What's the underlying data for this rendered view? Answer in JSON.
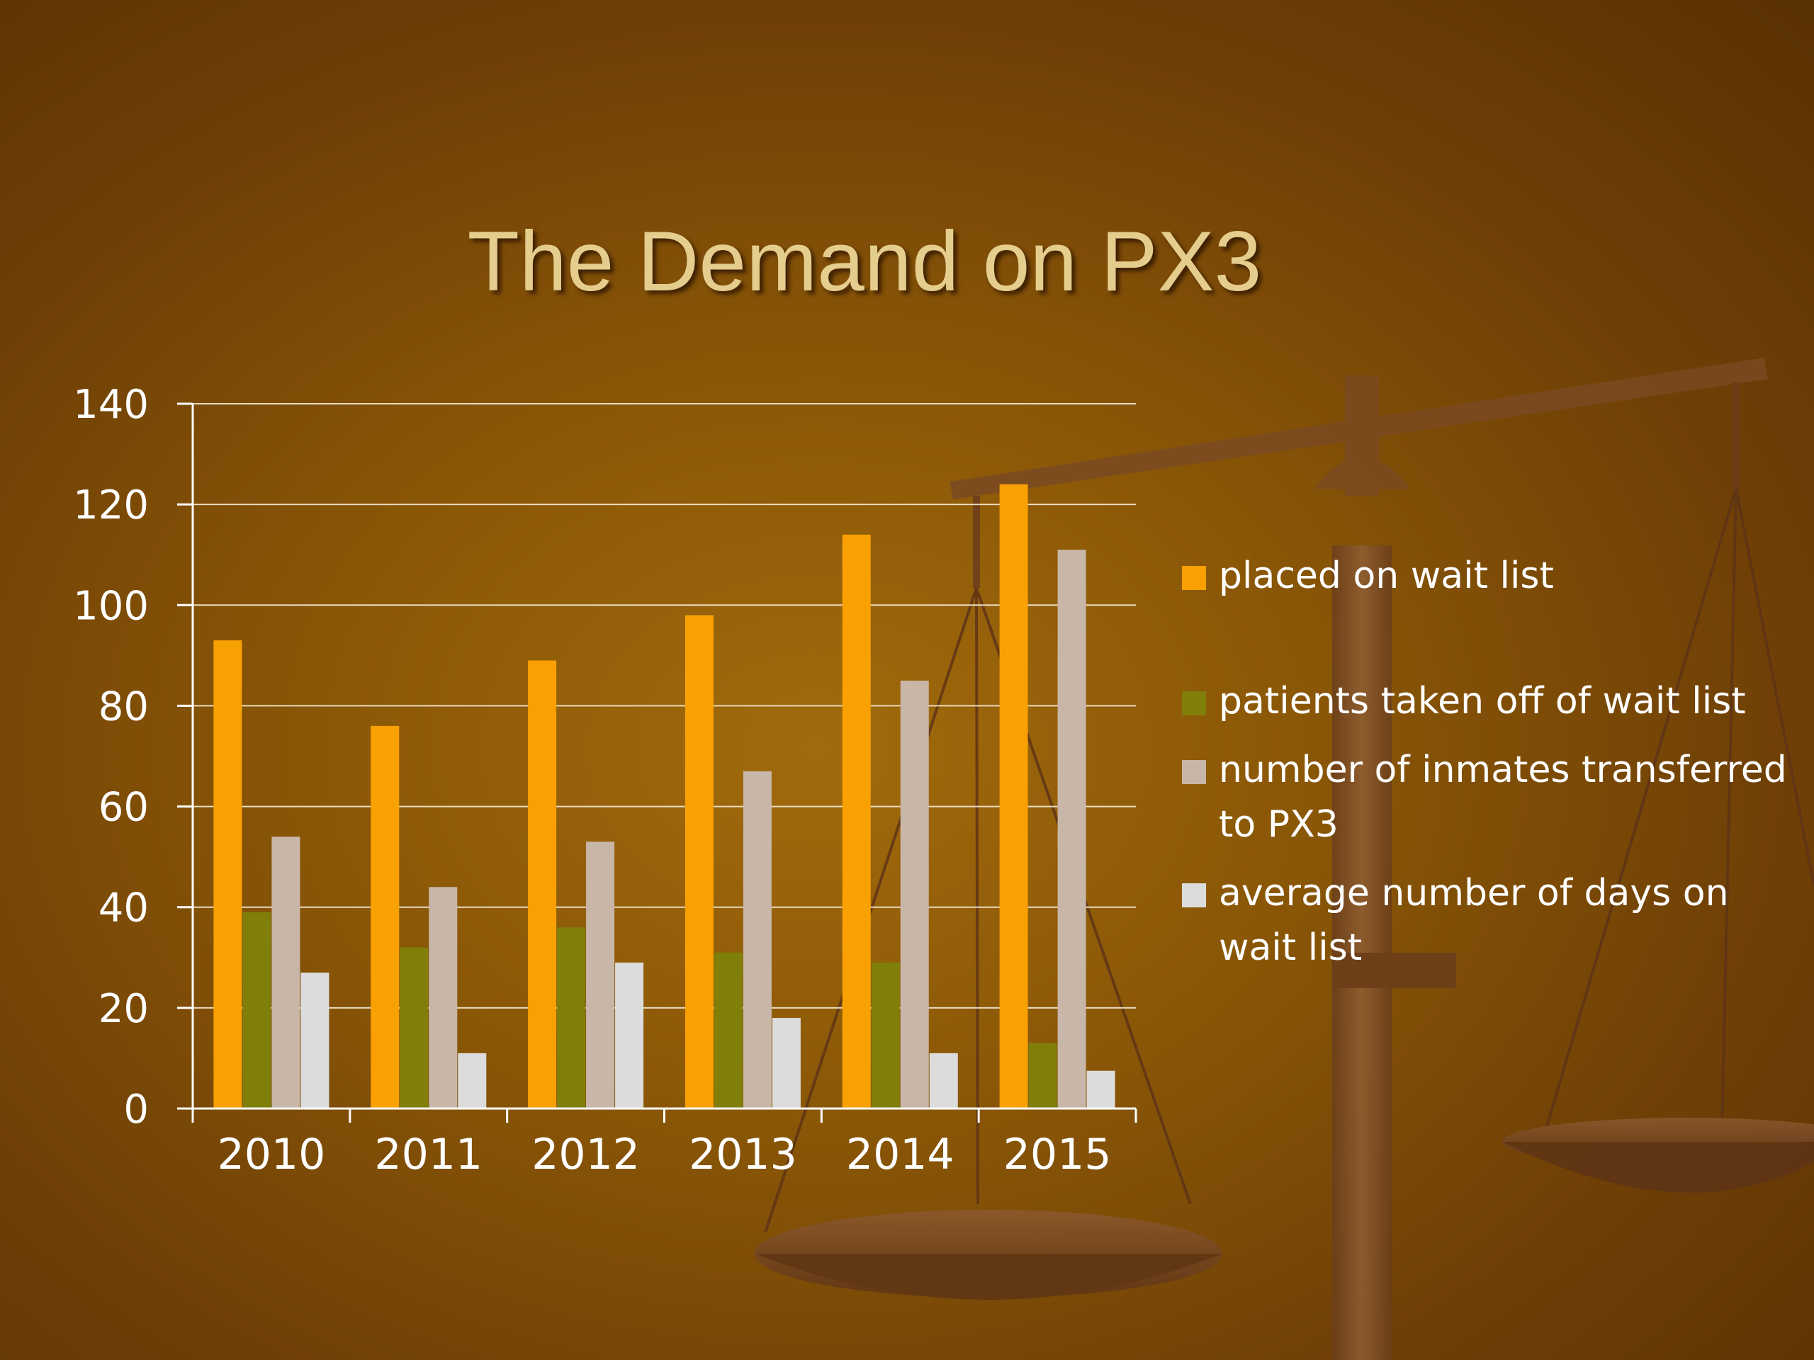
{
  "slide": {
    "title": "The Demand on PX3"
  },
  "colors": {
    "background": "#8a5707",
    "title": "#e5cd8e",
    "scale": "#7a4a22"
  },
  "chart_data": {
    "type": "bar",
    "title": "The Demand on PX3",
    "xlabel": "",
    "ylabel": "",
    "ylim": [
      0,
      140
    ],
    "yticks": [
      0,
      20,
      40,
      60,
      80,
      100,
      120,
      140
    ],
    "grid": true,
    "legend_position": "right",
    "categories": [
      "2010",
      "2011",
      "2012",
      "2013",
      "2014",
      "2015"
    ],
    "series": [
      {
        "name": "placed on wait list",
        "color": "#f9a002",
        "values": [
          93,
          76,
          89,
          98,
          114,
          124
        ]
      },
      {
        "name": "patients taken off of wait list",
        "color": "#7f7f0a",
        "values": [
          39,
          32,
          36,
          31,
          29,
          13
        ]
      },
      {
        "name": "number of inmates transferred to PX3",
        "color": "#c8b6a8",
        "values": [
          54,
          44,
          53,
          67,
          85,
          111
        ]
      },
      {
        "name": "average number of days on wait list",
        "color": "#dcdcdc",
        "values": [
          27,
          11,
          29,
          18,
          11,
          7.5
        ]
      }
    ]
  }
}
